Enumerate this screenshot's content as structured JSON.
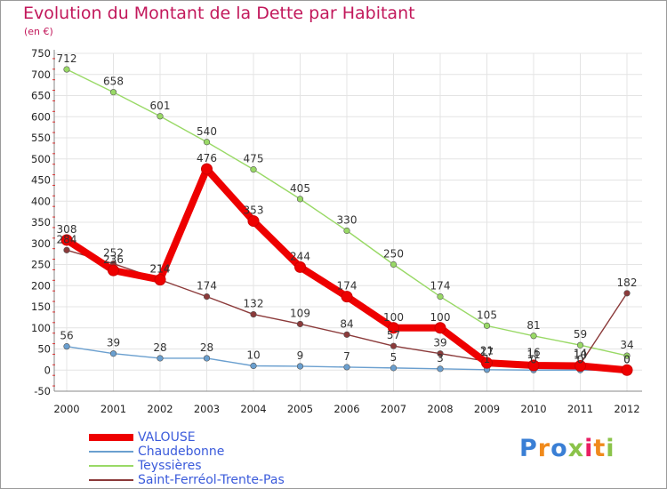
{
  "title": "Evolution du Montant de la Dette par Habitant",
  "subtitle": "(en €)",
  "logo_text": "Proxiti",
  "colors": {
    "title": "#c2185b",
    "legend_text": "#3b5bdb",
    "grid": "#e4e4e4",
    "axis": "#888888"
  },
  "chart_data": {
    "type": "line",
    "x": [
      "2000",
      "2001",
      "2002",
      "2003",
      "2004",
      "2005",
      "2006",
      "2007",
      "2008",
      "2009",
      "2010",
      "2011",
      "2012"
    ],
    "ylim": [
      -50,
      750
    ],
    "yticks": [
      -50,
      0,
      50,
      100,
      150,
      200,
      250,
      300,
      350,
      400,
      450,
      500,
      550,
      600,
      650,
      700,
      750
    ],
    "grid": true,
    "legend_position": "bottom-left",
    "series": [
      {
        "name": "VALOUSE",
        "color": "#ee0000",
        "values": [
          308,
          236,
          214,
          476,
          353,
          244,
          174,
          100,
          100,
          17,
          11,
          10,
          0
        ]
      },
      {
        "name": "Chaudebonne",
        "color": "#6a9fcf",
        "values": [
          56,
          39,
          28,
          28,
          10,
          9,
          7,
          5,
          3,
          1,
          0,
          0,
          0
        ]
      },
      {
        "name": "Teyssières",
        "color": "#99d966",
        "values": [
          712,
          658,
          601,
          540,
          475,
          405,
          330,
          250,
          174,
          105,
          81,
          59,
          34
        ]
      },
      {
        "name": "Saint-Ferréol-Trente-Pas",
        "color": "#8b3a3a",
        "values": [
          284,
          252,
          214,
          174,
          132,
          109,
          84,
          57,
          39,
          21,
          16,
          14,
          182
        ]
      }
    ]
  }
}
